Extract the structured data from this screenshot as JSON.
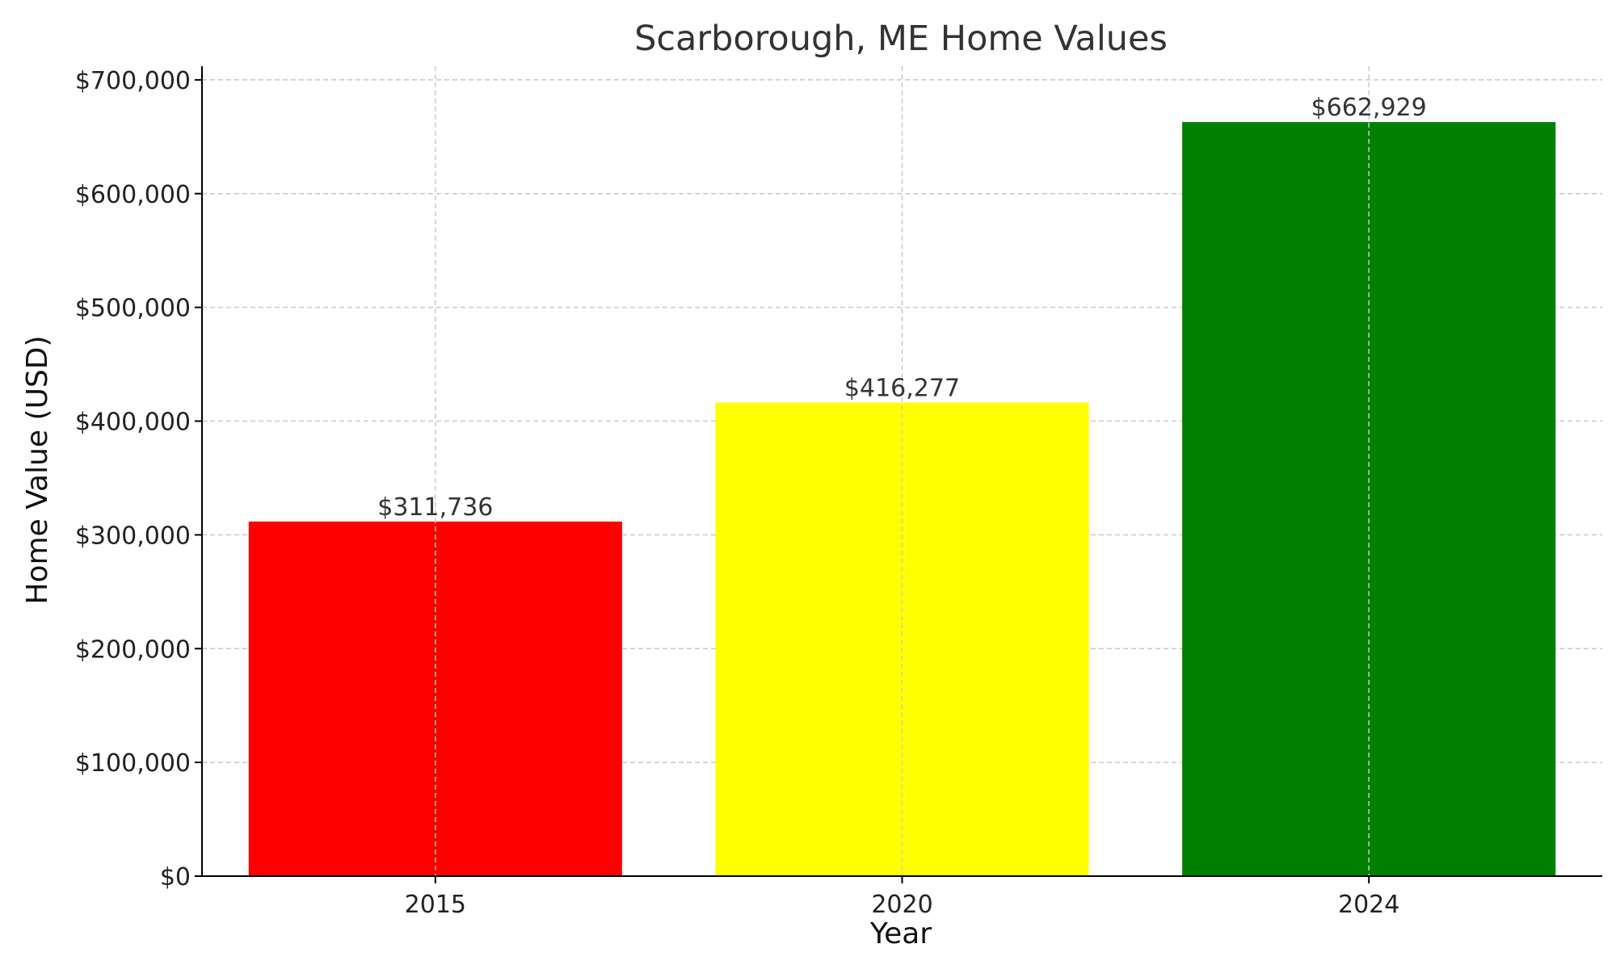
{
  "chart_data": {
    "type": "bar",
    "title": "Scarborough, ME Home Values",
    "xlabel": "Year",
    "ylabel": "Home Value (USD)",
    "categories": [
      "2015",
      "2020",
      "2024"
    ],
    "values": [
      311736,
      416277,
      662929
    ],
    "value_labels": [
      "$311,736",
      "$416,277",
      "$662,929"
    ],
    "bar_colors": [
      "#ff0000",
      "#ffff00",
      "#008000"
    ],
    "ylim": [
      0,
      712000
    ],
    "yticks": [
      0,
      100000,
      200000,
      300000,
      400000,
      500000,
      600000,
      700000
    ],
    "ytick_labels": [
      "$0",
      "$100,000",
      "$200,000",
      "$300,000",
      "$400,000",
      "$500,000",
      "$600,000",
      "$700,000"
    ],
    "grid": true,
    "legend": false
  }
}
